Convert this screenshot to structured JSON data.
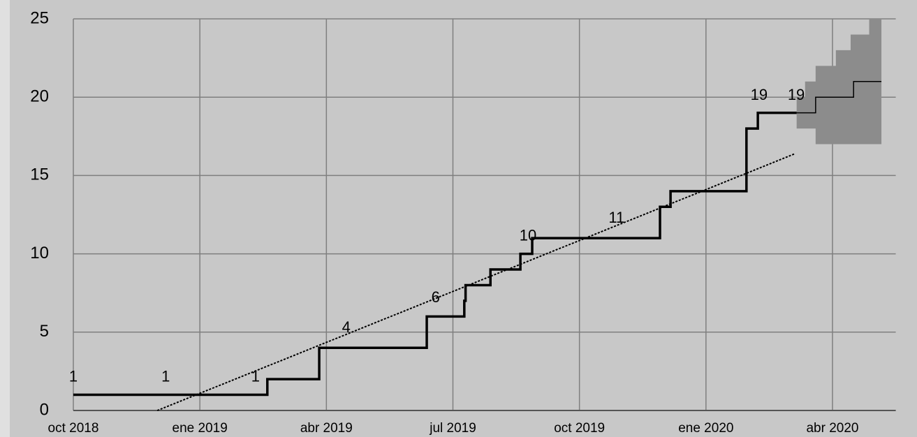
{
  "chart_data": {
    "type": "line",
    "xlim": [
      0,
      19.5
    ],
    "ylim": [
      0,
      25
    ],
    "xticks": [
      {
        "value": 0,
        "label": "oct 2018"
      },
      {
        "value": 3,
        "label": "ene 2019"
      },
      {
        "value": 6,
        "label": "abr 2019"
      },
      {
        "value": 9,
        "label": "jul 2019"
      },
      {
        "value": 12,
        "label": "oct 2019"
      },
      {
        "value": 15,
        "label": "ene 2020"
      },
      {
        "value": 18,
        "label": "abr 2020"
      }
    ],
    "yticks": [
      0,
      5,
      10,
      15,
      20,
      25
    ],
    "grid": true,
    "band": {
      "color": "#8c8c8c",
      "drawstyle": "steps-post",
      "x": [
        17.15,
        17.35,
        17.6,
        18.08,
        18.43,
        18.87,
        19.16
      ],
      "lower": [
        18,
        18,
        17,
        17,
        17,
        17,
        17
      ],
      "upper": [
        20,
        21,
        22,
        23,
        24,
        25,
        25
      ]
    },
    "series": [
      {
        "color": "#000000",
        "width": 3.5,
        "drawstyle": "steps-post",
        "x": [
          0,
          4.6,
          5.83,
          8.38,
          9.27,
          9.3,
          9.89,
          10.6,
          10.88,
          13.91,
          14.16,
          15.96,
          16.23,
          17.15
        ],
        "values": [
          1,
          2,
          4,
          6,
          7,
          8,
          9,
          10,
          11,
          13,
          14,
          18,
          19,
          19
        ]
      },
      {
        "color": "#000000",
        "width": 1.5,
        "drawstyle": "steps-post",
        "x": [
          17.15,
          17.6,
          18.5,
          19.16
        ],
        "values": [
          19,
          20,
          21,
          21
        ]
      },
      {
        "color": "#000000",
        "width": 2,
        "dash": true,
        "x": [
          1.99,
          17.12
        ],
        "values": [
          0,
          16.4
        ]
      }
    ],
    "annotations": [
      {
        "text": "1",
        "x": 0,
        "y": 2.1
      },
      {
        "text": "1",
        "x": 2.19,
        "y": 2.1
      },
      {
        "text": "1",
        "x": 4.32,
        "y": 2.1
      },
      {
        "text": "4",
        "x": 6.47,
        "y": 5.26
      },
      {
        "text": "6",
        "x": 8.59,
        "y": 7.17
      },
      {
        "text": "10",
        "x": 10.78,
        "y": 11.1
      },
      {
        "text": "11",
        "x": 12.88,
        "y": 12.25
      },
      {
        "text": "19",
        "x": 16.26,
        "y": 20.1
      },
      {
        "text": "19",
        "x": 17.14,
        "y": 20.1
      }
    ]
  }
}
